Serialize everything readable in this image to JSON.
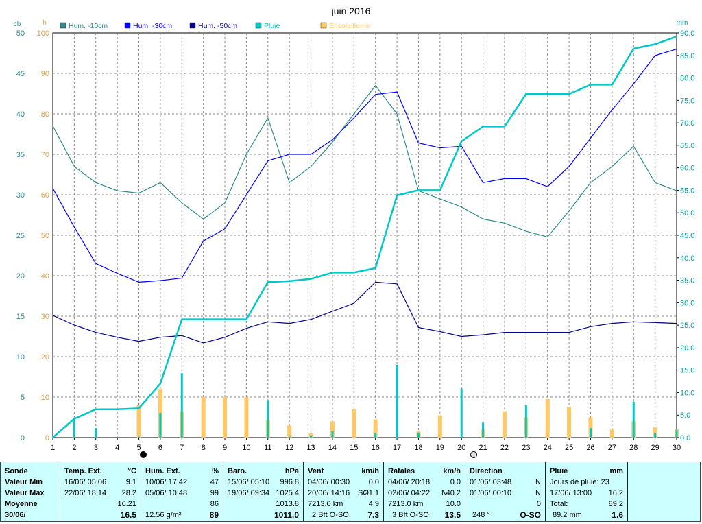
{
  "chart_data": {
    "type": "line",
    "title": "juin 2016",
    "left_axis_cb": {
      "unit": "cb",
      "ticks": [
        "0",
        "5",
        "10",
        "15",
        "20",
        "25",
        "30",
        "35",
        "40",
        "45",
        "50"
      ],
      "ylim": [
        0,
        50
      ]
    },
    "left_axis_h": {
      "unit": "h",
      "ticks": [
        "0",
        "10",
        "20",
        "30",
        "40",
        "50",
        "60",
        "70",
        "80",
        "90",
        "100"
      ],
      "ylim": [
        0,
        100
      ]
    },
    "right_axis": {
      "unit": "mm",
      "ticks": [
        "0.0",
        "5.0",
        "10.0",
        "15.0",
        "20.0",
        "25.0",
        "30.0",
        "35.0",
        "40.0",
        "45.0",
        "50.0",
        "55.0",
        "60.0",
        "65.0",
        "70.0",
        "75.0",
        "80.0",
        "85.0",
        "90.0"
      ],
      "ylim": [
        0,
        90
      ]
    },
    "x": [
      1,
      2,
      3,
      4,
      5,
      6,
      7,
      8,
      9,
      10,
      11,
      12,
      13,
      14,
      15,
      16,
      17,
      18,
      19,
      20,
      21,
      22,
      23,
      24,
      25,
      26,
      27,
      28,
      29,
      30
    ],
    "legend": [
      {
        "name": "Hum. -10cm",
        "color": "#2e8b8b"
      },
      {
        "name": "Hum. -30cm",
        "color": "#0000ff"
      },
      {
        "name": "Hum. -50cm",
        "color": "#00008b"
      },
      {
        "name": "Pluie",
        "color": "#00c8c8"
      },
      {
        "name": "Ensoleilleme",
        "color": "#ffc864"
      }
    ],
    "series": [
      {
        "name": "Hum. -10cm",
        "axis": "cb",
        "color": "#2e8b8b",
        "values": [
          38.5,
          33.5,
          31.5,
          30.5,
          30.2,
          31.5,
          29,
          27,
          29,
          35,
          39.5,
          31.5,
          33.5,
          36.5,
          40,
          43.5,
          40,
          30.5,
          29.5,
          28.5,
          27,
          26.5,
          25.5,
          24.8,
          28,
          31.5,
          33.5,
          36,
          31.5,
          30.5
        ]
      },
      {
        "name": "Hum. -30cm",
        "axis": "cb",
        "color": "#0000ff",
        "values": [
          30.8,
          26,
          21.5,
          20.3,
          19.2,
          19.4,
          19.7,
          24.3,
          25.8,
          30,
          34.2,
          35,
          35,
          36.8,
          39.5,
          42.4,
          42.7,
          36.4,
          35.8,
          36,
          31.5,
          32,
          32,
          31,
          33.5,
          37,
          40.5,
          43.7,
          47.2,
          48
        ]
      },
      {
        "name": "Hum. -50cm",
        "axis": "cb",
        "color": "#00008b",
        "values": [
          15.1,
          13.9,
          13,
          12.4,
          11.9,
          12.4,
          12.6,
          11.7,
          12.4,
          13.5,
          14.3,
          14.1,
          14.6,
          15.6,
          16.6,
          19.2,
          19,
          13.6,
          13.1,
          12.5,
          12.7,
          13,
          13,
          13,
          13,
          13.7,
          14.1,
          14.3,
          14.2,
          14.1
        ]
      },
      {
        "name": "Pluie",
        "axis": "mm",
        "color": "#00c8c8",
        "values": [
          0,
          4.2,
          6.3,
          6.3,
          6.5,
          12,
          26.3,
          26.3,
          26.3,
          26.3,
          34.6,
          34.8,
          35.3,
          36.7,
          36.7,
          37.7,
          53.9,
          55,
          55,
          65.9,
          69.2,
          69.2,
          76.4,
          76.4,
          76.4,
          78.5,
          78.5,
          86.5,
          87.5,
          89.2
        ]
      }
    ],
    "bars_sun": {
      "name": "Ensoleilleme",
      "axis": "h",
      "color": "#ffc864",
      "values": [
        0,
        0,
        0,
        0,
        8,
        12,
        6.5,
        10,
        10,
        10,
        4.5,
        3,
        1,
        4,
        7,
        4.5,
        0,
        1.5,
        5.5,
        0,
        2,
        6.5,
        5,
        9.5,
        7.5,
        5,
        2,
        4,
        2.5,
        2
      ]
    },
    "bars_rain": {
      "name": "Pluie",
      "axis": "mm",
      "color": "#00c8c8",
      "values": [
        0,
        4.2,
        2.1,
        0,
        0.2,
        5.5,
        14.3,
        0,
        0,
        0,
        8.3,
        0.2,
        0.5,
        1.4,
        0,
        1,
        16.2,
        1.1,
        0,
        10.9,
        3.3,
        0,
        7.2,
        0,
        0,
        2.1,
        0,
        8,
        1,
        1.7
      ]
    }
  },
  "panel": {
    "sonde": {
      "header": "Sonde",
      "min": "Valeur Min",
      "max": "Valeur Max",
      "moy": "Moyenne",
      "date": "30/06/"
    },
    "temp": {
      "header": "Temp. Ext.",
      "unit": "°C",
      "min_date": "16/06/  05:06",
      "min_val": "9.1",
      "max_date": "22/06/  18:14",
      "max_val": "28.2",
      "moy_val": "16.21",
      "cur_val": "16.5"
    },
    "hum": {
      "header": "Hum. Ext.",
      "unit": "%",
      "min_date": "10/06/  17:42",
      "min_val": "47",
      "max_date": "05/06/  10:48",
      "max_val": "99",
      "moy_val": "86",
      "extra": "12.56 g/m²",
      "cur_val": "89"
    },
    "baro": {
      "header": "Baro.",
      "unit": "hPa",
      "min_date": "15/06/  05:10",
      "min_val": "996.8",
      "max_date": "19/06/  09:34",
      "max_val": "1025.4",
      "moy_val": "1013.8",
      "cur_val": "1011.0"
    },
    "vent": {
      "header": "Vent",
      "unit": "km/h",
      "min_date": "04/06/  00:30",
      "min_val": "0.0",
      "max_date": "20/06/  14:16",
      "max_dir": "SO",
      "max_val": "21.1",
      "moy_label": "7213.0 km",
      "moy_val": "4.9",
      "cur_label": "2 Bft O-SO",
      "cur_val": "7.3"
    },
    "rafales": {
      "header": "Rafales",
      "unit": "km/h",
      "min_date": "04/06/  20:18",
      "min_val": "0.0",
      "max_date": "02/06/  04:22",
      "max_dir": "N",
      "max_val": "40.2",
      "moy_label": "7213.0 km",
      "moy_val": "10.0",
      "cur_label": "3 Bft O-SO",
      "cur_val": "13.5"
    },
    "direction": {
      "header": "Direction",
      "r1_date": "01/06/  03:48",
      "r1_val": "N",
      "r2_date": "01/06/  00:10",
      "r2_val": "N",
      "r3_val": "0",
      "cur_label": "248 °",
      "cur_val": "O-SO"
    },
    "pluie": {
      "header": "Pluie",
      "unit": "mm",
      "days": "Jours de pluie: 23",
      "max_date": "17/06/  13:00",
      "max_val": "16.2",
      "total_label": "Total:",
      "total_val": "89.2",
      "cur_label": "89.2 mm",
      "cur_val": "1.6"
    }
  }
}
